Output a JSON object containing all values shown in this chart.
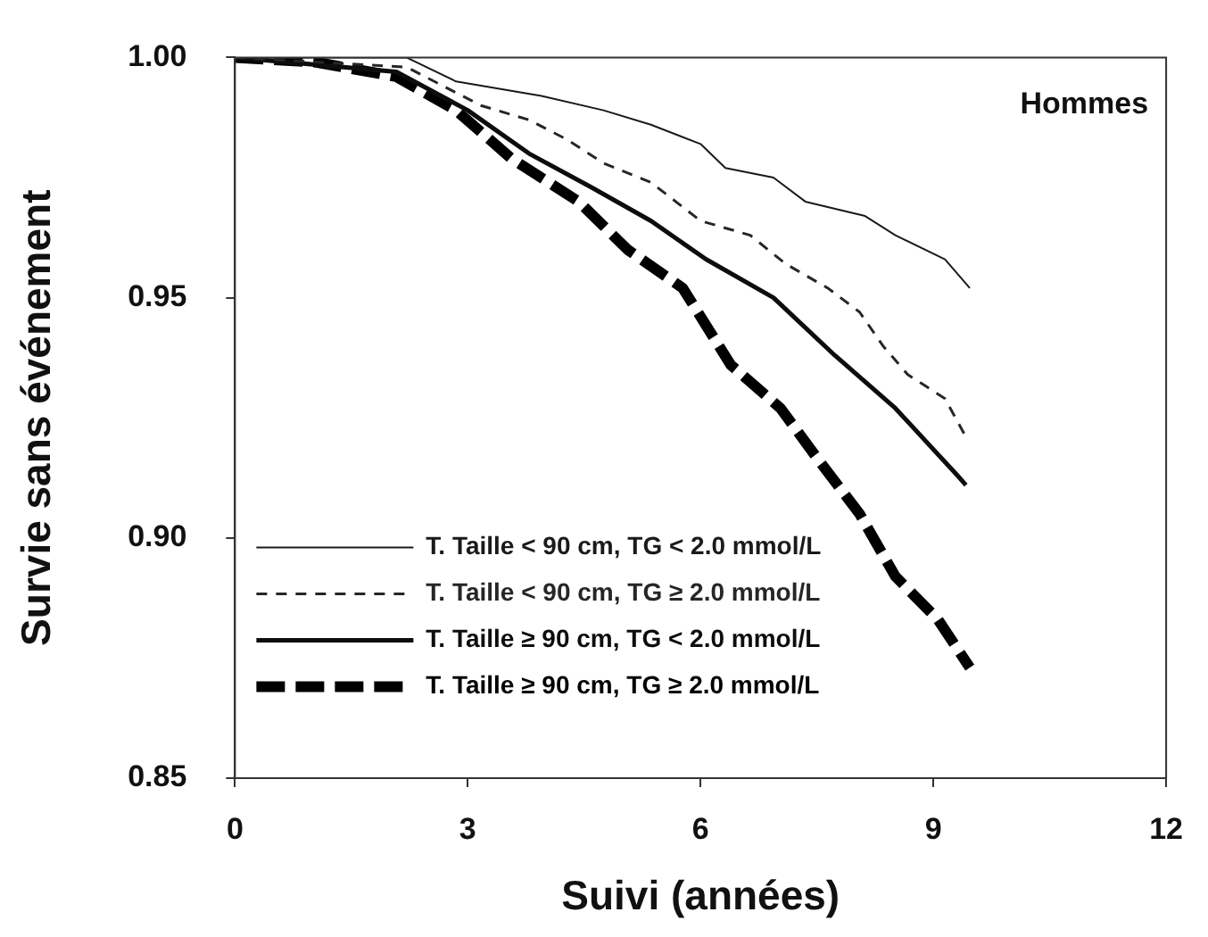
{
  "chart_data": {
    "type": "line",
    "xlabel": "Suivi (années)",
    "ylabel": "Survie sans événement",
    "annotations": [
      "Hommes"
    ],
    "xlim": [
      0,
      12
    ],
    "xticks": [
      0,
      3,
      6,
      9,
      12
    ],
    "ylim": [
      0.85,
      1.0
    ],
    "yticks": [
      0.85,
      {
        "value": 0.9,
        "label": "0.90"
      },
      0.95,
      {
        "value": 1.0,
        "label": "1.00"
      }
    ],
    "grid": false,
    "legend": "bottom left",
    "marker": "none",
    "series": [
      {
        "name": "T. Taille < 90 cm, TG < 2.0 mmol/L",
        "color": "#1a1a1a",
        "line_style": "solid",
        "x": [
          0,
          2.21,
          2.85,
          3.95,
          4.75,
          5.36,
          6.0,
          6.32,
          6.94,
          7.35,
          8.12,
          8.51,
          9.15,
          9.47
        ],
        "values": [
          1.0,
          1.0,
          0.995,
          0.992,
          0.989,
          0.986,
          0.982,
          0.977,
          0.975,
          0.97,
          0.967,
          0.963,
          0.958,
          0.952
        ]
      },
      {
        "name": "T. Taille < 90 cm, TG ≥ 2.0 mmol/L",
        "color": "#262626",
        "line_style": "dashed",
        "x": [
          0,
          2.21,
          3.17,
          3.79,
          4.27,
          4.75,
          5.36,
          6.0,
          6.64,
          7.1,
          7.64,
          8.05,
          8.35,
          8.67,
          9.15,
          9.42
        ],
        "values": [
          1.0,
          0.998,
          0.99,
          0.987,
          0.983,
          0.978,
          0.974,
          0.966,
          0.963,
          0.957,
          0.952,
          0.947,
          0.94,
          0.934,
          0.929,
          0.921
        ]
      },
      {
        "name": "T. Taille ≥ 90 cm, TG < 2.0 mmol/L",
        "color": "#0d0d0d",
        "line_style": "solid",
        "x": [
          0,
          2.08,
          3.0,
          3.79,
          4.59,
          5.36,
          6.07,
          6.94,
          7.73,
          8.51,
          9.31,
          9.42
        ],
        "values": [
          1.0,
          0.997,
          0.989,
          0.98,
          0.973,
          0.966,
          0.958,
          0.95,
          0.938,
          0.927,
          0.913,
          0.911
        ]
      },
      {
        "name": "T. Taille ≥ 90 cm, TG ≥ 2.0 mmol/L",
        "color": "#000000",
        "line_style": "dashed",
        "x": [
          0,
          1.05,
          2.08,
          2.85,
          3.56,
          4.43,
          5.06,
          5.77,
          6.39,
          7.03,
          7.53,
          8.05,
          8.51,
          9.06,
          9.47
        ],
        "values": [
          1.0,
          0.999,
          0.996,
          0.989,
          0.979,
          0.97,
          0.96,
          0.952,
          0.936,
          0.927,
          0.916,
          0.905,
          0.892,
          0.883,
          0.873
        ]
      }
    ]
  }
}
